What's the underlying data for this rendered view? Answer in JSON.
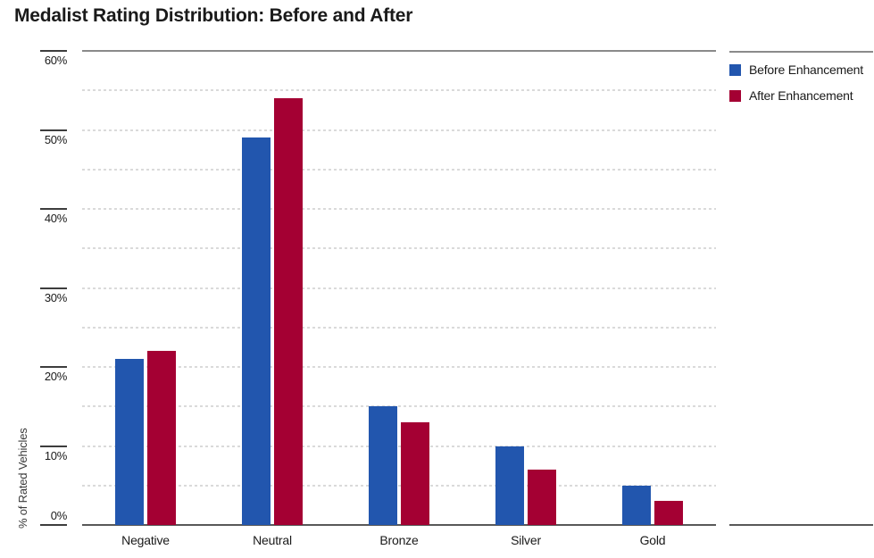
{
  "title": "Medalist Rating Distribution: Before and After",
  "legend": {
    "items": [
      {
        "label": "Before Enhancement",
        "color": "#2256AE"
      },
      {
        "label": "After Enhancement",
        "color": "#A40033"
      }
    ]
  },
  "y_axis": {
    "label": "% of Rated Vehicles",
    "tick_labels": [
      "0%",
      "10%",
      "20%",
      "30%",
      "40%",
      "50%",
      "60%"
    ]
  },
  "chart_data": {
    "type": "bar",
    "title": "Medalist Rating Distribution: Before and After",
    "categories": [
      "Negative",
      "Neutral",
      "Bronze",
      "Silver",
      "Gold"
    ],
    "series": [
      {
        "name": "Before Enhancement",
        "color": "#2256AE",
        "values": [
          21,
          49,
          15,
          10,
          5
        ]
      },
      {
        "name": "After Enhancement",
        "color": "#A40033",
        "values": [
          22,
          54,
          13,
          7,
          3
        ]
      }
    ],
    "xlabel": "",
    "ylabel": "% of Rated Vehicles",
    "ylim": [
      0,
      60
    ],
    "labeled_tick_interval": 10,
    "gridline_interval": 5,
    "gridline_style": "dashed",
    "grid": true,
    "legend_position": "top-right"
  },
  "colors": {
    "before_bar": "#2256AE",
    "after_bar": "#A40033",
    "gridline": "#DADADA",
    "plot_top_border": "#8A8A8A",
    "axis_bottom": "#595959",
    "tick": "#3D3D3D",
    "text": "#1A1A1A"
  }
}
